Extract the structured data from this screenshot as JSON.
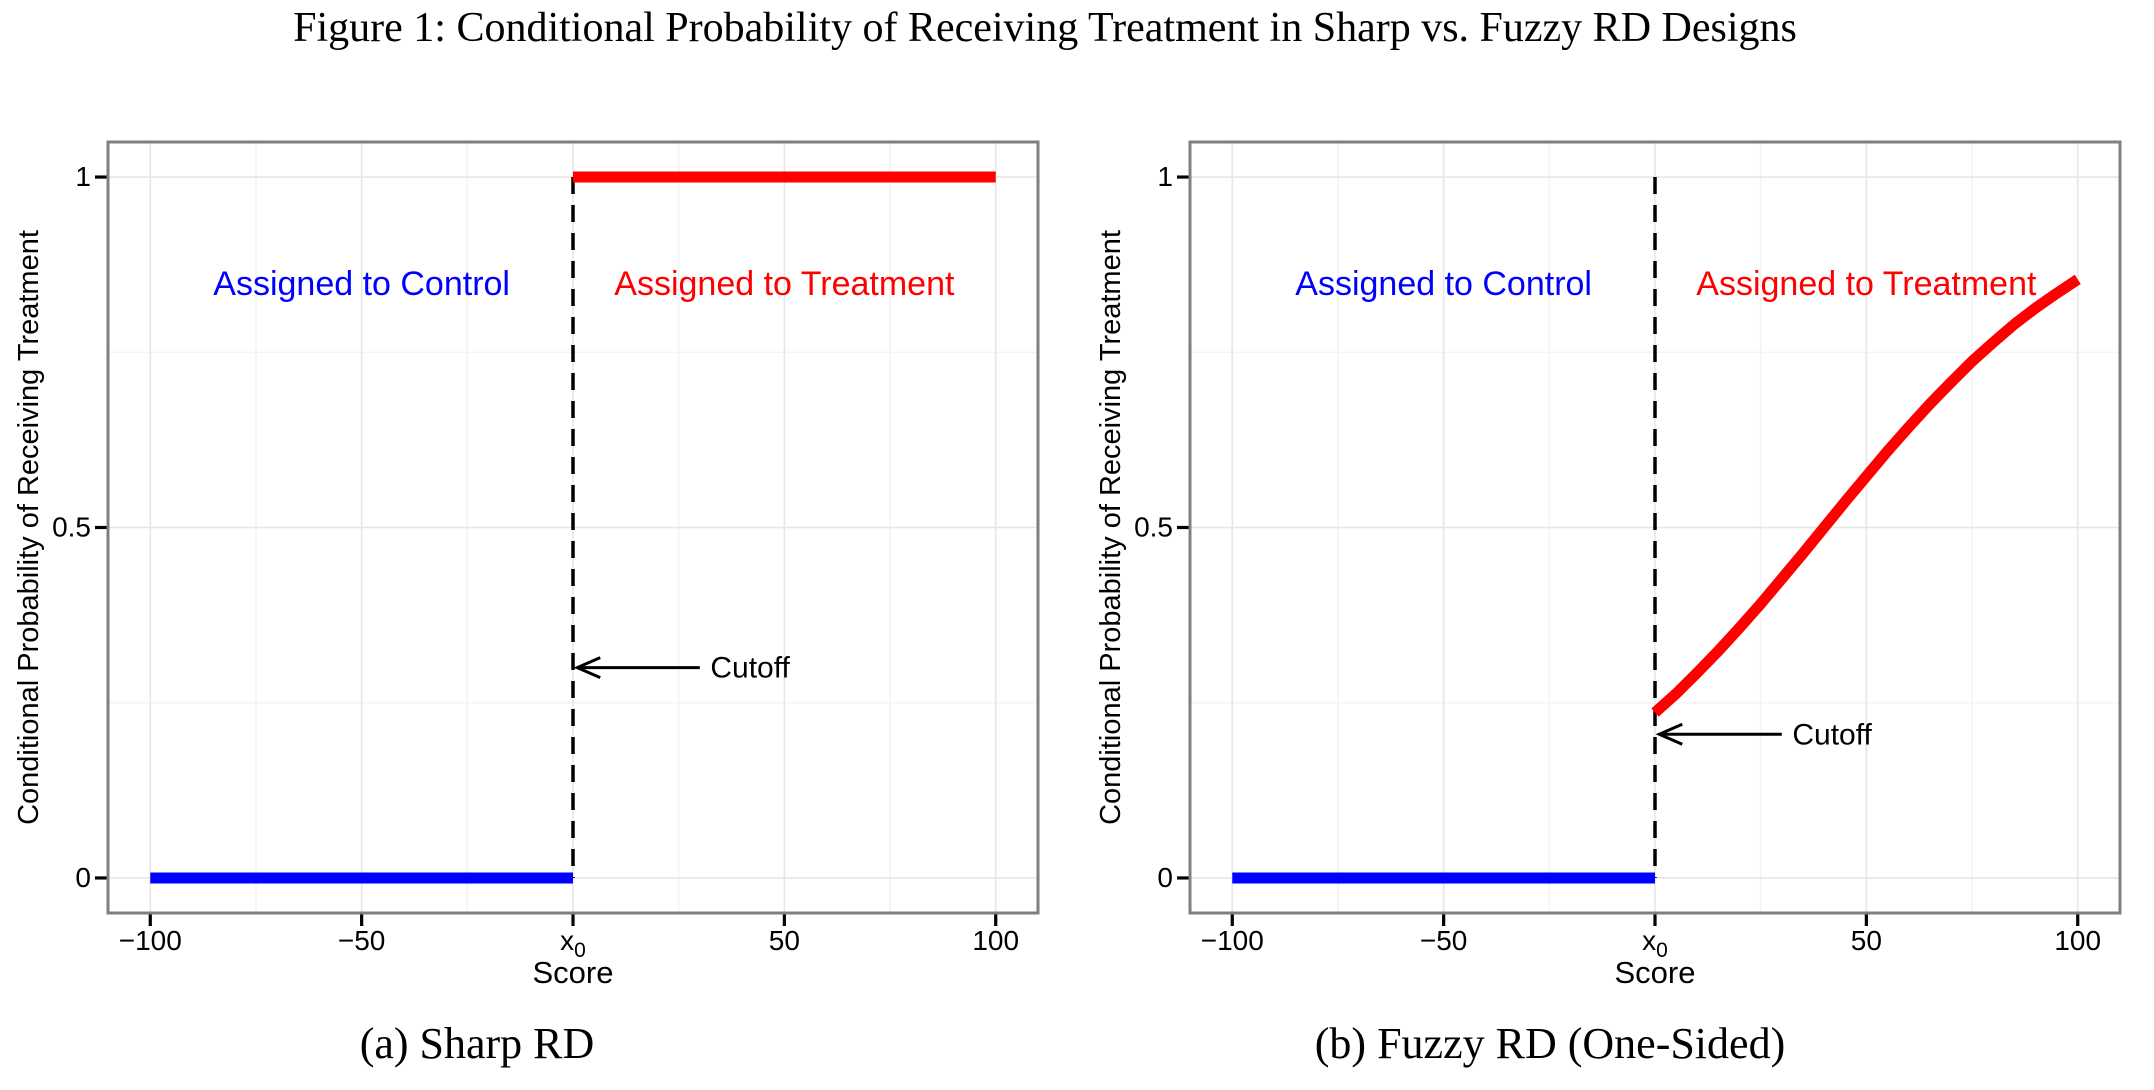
{
  "title": "Figure 1: Conditional Probability of Receiving Treatment in Sharp vs. Fuzzy RD Designs",
  "colors": {
    "control": "#0000ff",
    "treatment": "#ff0000",
    "grid_major": "#e6e6e6",
    "grid_minor": "#f4f4f4",
    "panel_border": "#7f7f7f",
    "axis_text": "#000000",
    "cutoff_line": "#000000",
    "background": "#ffffff"
  },
  "chart_data": [
    {
      "id": "sharp-rd",
      "type": "line",
      "caption": "(a) Sharp RD",
      "xlabel": "Score",
      "ylabel": "Conditional Probability of Receiving Treatment",
      "xlim": [
        -100,
        100
      ],
      "ylim": [
        0,
        1
      ],
      "grid": true,
      "legend_position": "none",
      "x_ticks": [
        {
          "v": -100,
          "t": "−100"
        },
        {
          "v": -50,
          "t": "−50"
        },
        {
          "v": 0,
          "t": "x",
          "sub": "0"
        },
        {
          "v": 50,
          "t": "50"
        },
        {
          "v": 100,
          "t": "100"
        }
      ],
      "x_minor": [
        -75,
        -25,
        25,
        75
      ],
      "y_ticks": [
        {
          "v": 0,
          "t": "0"
        },
        {
          "v": 0.5,
          "t": "0.5"
        },
        {
          "v": 1,
          "t": "1"
        }
      ],
      "y_minor": [
        0.25,
        0.75
      ],
      "cutoff_line": {
        "x": 0,
        "from_y": 0,
        "to_y": 1,
        "style": "dashed"
      },
      "series": [
        {
          "name": "assigned-control",
          "color": "#0000ff",
          "points": [
            [
              -100,
              0
            ],
            [
              0,
              0
            ]
          ]
        },
        {
          "name": "assigned-treatment",
          "color": "#ff0000",
          "points": [
            [
              0,
              1
            ],
            [
              100,
              1
            ]
          ]
        }
      ],
      "region_labels": [
        {
          "text": "Assigned to Control",
          "color": "#0000ff",
          "x": -50,
          "y": 0.85
        },
        {
          "text": "Assigned to Treatment",
          "color": "#ff0000",
          "x": 50,
          "y": 0.85
        }
      ],
      "cutoff_annotation": {
        "text": "Cutoff",
        "arrow_tip_x": 1,
        "arrow_tail_x": 30,
        "text_x": 32.5,
        "y": 0.3
      }
    },
    {
      "id": "fuzzy-rd",
      "type": "line",
      "caption": "(b) Fuzzy RD (One-Sided)",
      "xlabel": "Score",
      "ylabel": "Conditional Probability of Receiving Treatment",
      "xlim": [
        -100,
        100
      ],
      "ylim": [
        0,
        1
      ],
      "grid": true,
      "legend_position": "none",
      "x_ticks": [
        {
          "v": -100,
          "t": "−100"
        },
        {
          "v": -50,
          "t": "−50"
        },
        {
          "v": 0,
          "t": "x",
          "sub": "0"
        },
        {
          "v": 50,
          "t": "50"
        },
        {
          "v": 100,
          "t": "100"
        }
      ],
      "x_minor": [
        -75,
        -25,
        25,
        75
      ],
      "y_ticks": [
        {
          "v": 0,
          "t": "0"
        },
        {
          "v": 0.5,
          "t": "0.5"
        },
        {
          "v": 1,
          "t": "1"
        }
      ],
      "y_minor": [
        0.25,
        0.75
      ],
      "cutoff_line": {
        "x": 0,
        "from_y": 0,
        "to_y": 1,
        "style": "dashed"
      },
      "series": [
        {
          "name": "assigned-control",
          "color": "#0000ff",
          "points": [
            [
              -100,
              0
            ],
            [
              0,
              0
            ]
          ]
        },
        {
          "name": "assigned-treatment",
          "color": "#ff0000",
          "points": [
            [
              0,
              0.236
            ],
            [
              5,
              0.263
            ],
            [
              10,
              0.293
            ],
            [
              15,
              0.324
            ],
            [
              20,
              0.357
            ],
            [
              25,
              0.391
            ],
            [
              30,
              0.427
            ],
            [
              35,
              0.463
            ],
            [
              40,
              0.5
            ],
            [
              45,
              0.537
            ],
            [
              50,
              0.573
            ],
            [
              55,
              0.609
            ],
            [
              60,
              0.643
            ],
            [
              65,
              0.676
            ],
            [
              70,
              0.707
            ],
            [
              75,
              0.737
            ],
            [
              80,
              0.764
            ],
            [
              85,
              0.79
            ],
            [
              90,
              0.813
            ],
            [
              95,
              0.834
            ],
            [
              100,
              0.854
            ]
          ]
        }
      ],
      "region_labels": [
        {
          "text": "Assigned to Control",
          "color": "#0000ff",
          "x": -50,
          "y": 0.85
        },
        {
          "text": "Assigned to Treatment",
          "color": "#ff0000",
          "x": 50,
          "y": 0.85
        }
      ],
      "cutoff_annotation": {
        "text": "Cutoff",
        "arrow_tip_x": 1,
        "arrow_tail_x": 30,
        "text_x": 32.5,
        "y": 0.205
      }
    }
  ]
}
